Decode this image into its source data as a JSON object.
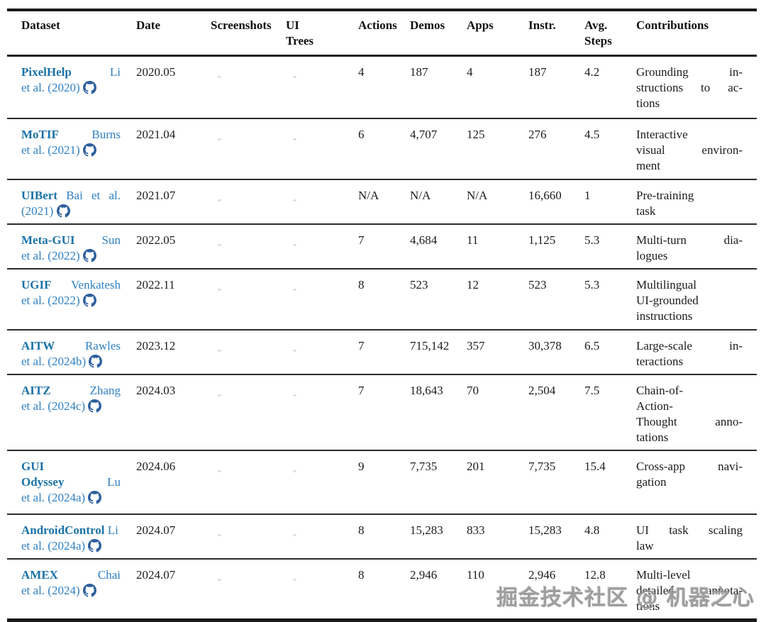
{
  "colors": {
    "dataset_name": "#1a72a8",
    "citation": "#2f80c3",
    "github_icon": "#2d5f9e",
    "watermark": "#969696"
  },
  "watermark_text": "掘金技术社区 @ 机器之心",
  "header": {
    "columns": [
      "Dataset",
      "Date",
      "Screenshots",
      "UI\nTrees",
      "Actions",
      "Demos",
      "Apps",
      "Instr.",
      "Avg.\nSteps",
      "Contributions"
    ]
  },
  "rows": [
    {
      "dataset": {
        "lines": [
          {
            "seg": [
              {
                "t": "PixelHelp",
                "s": "name"
              },
              {
                "t": "Li",
                "s": "cite"
              }
            ],
            "spread": true
          },
          {
            "seg": [
              {
                "t": "et al. (2020)",
                "s": "cite"
              }
            ],
            "icon": true
          }
        ]
      },
      "date": "2020.05",
      "actions": "4",
      "demos": "187",
      "apps": "4",
      "instr": "187",
      "avg_steps": "4.2",
      "contributions": [
        "Grounding in-",
        "structions to ac-",
        "tions"
      ]
    },
    {
      "dataset": {
        "lines": [
          {
            "seg": [
              {
                "t": "MoTIF",
                "s": "name"
              },
              {
                "t": "Burns",
                "s": "cite"
              }
            ],
            "spread": true
          },
          {
            "seg": [
              {
                "t": "et al. (2021)",
                "s": "cite"
              }
            ],
            "icon": true
          }
        ]
      },
      "date": "2021.04",
      "actions": "6",
      "demos": "4,707",
      "apps": "125",
      "instr": "276",
      "avg_steps": "4.5",
      "contributions": [
        "Interactive",
        "visual environ-",
        "ment"
      ]
    },
    {
      "dataset": {
        "lines": [
          {
            "seg": [
              {
                "t": "UIBert",
                "s": "name"
              },
              {
                "t": "Bai et al.",
                "s": "cite"
              }
            ],
            "spread": true
          },
          {
            "seg": [
              {
                "t": "(2021)",
                "s": "cite"
              }
            ],
            "icon": true
          }
        ]
      },
      "date": "2021.07",
      "actions": "N/A",
      "demos": "N/A",
      "apps": "N/A",
      "instr": "16,660",
      "avg_steps": "1",
      "contributions": [
        "Pre-training",
        "task"
      ]
    },
    {
      "dataset": {
        "lines": [
          {
            "seg": [
              {
                "t": "Meta-GUI",
                "s": "name"
              },
              {
                "t": "Sun",
                "s": "cite"
              }
            ],
            "spread": true
          },
          {
            "seg": [
              {
                "t": "et al. (2022)",
                "s": "cite"
              }
            ],
            "icon": true
          }
        ]
      },
      "date": "2022.05",
      "actions": "7",
      "demos": "4,684",
      "apps": "11",
      "instr": "1,125",
      "avg_steps": "5.3",
      "contributions": [
        "Multi-turn dia-",
        "logues"
      ]
    },
    {
      "dataset": {
        "lines": [
          {
            "seg": [
              {
                "t": "UGIF",
                "s": "name"
              },
              {
                "t": "Venkatesh",
                "s": "cite"
              }
            ],
            "spread": true
          },
          {
            "seg": [
              {
                "t": "et al. (2022)",
                "s": "cite"
              }
            ],
            "icon": true
          }
        ]
      },
      "date": "2022.11",
      "actions": "8",
      "demos": "523",
      "apps": "12",
      "instr": "523",
      "avg_steps": "5.3",
      "contributions": [
        "Multilingual",
        "UI-grounded",
        "instructions"
      ]
    },
    {
      "dataset": {
        "lines": [
          {
            "seg": [
              {
                "t": "AITW",
                "s": "name"
              },
              {
                "t": "Rawles",
                "s": "cite"
              }
            ],
            "spread": true
          },
          {
            "seg": [
              {
                "t": "et al. (2024b)",
                "s": "cite"
              }
            ],
            "icon": true
          }
        ]
      },
      "date": "2023.12",
      "actions": "7",
      "demos": "715,142",
      "apps": "357",
      "instr": "30,378",
      "avg_steps": "6.5",
      "contributions": [
        "Large-scale in-",
        "teractions"
      ]
    },
    {
      "dataset": {
        "lines": [
          {
            "seg": [
              {
                "t": "AITZ",
                "s": "name"
              },
              {
                "t": "Zhang",
                "s": "cite"
              }
            ],
            "spread": true
          },
          {
            "seg": [
              {
                "t": "et al. (2024c)",
                "s": "cite"
              }
            ],
            "icon": true
          }
        ]
      },
      "date": "2024.03",
      "actions": "7",
      "demos": "18,643",
      "apps": "70",
      "instr": "2,504",
      "avg_steps": "7.5",
      "contributions": [
        "Chain-of-",
        "Action-",
        "Thought anno-",
        "tations"
      ]
    },
    {
      "dataset": {
        "lines": [
          {
            "seg": [
              {
                "t": "GUI",
                "s": "name"
              }
            ]
          },
          {
            "seg": [
              {
                "t": "Odyssey",
                "s": "name"
              },
              {
                "t": "Lu",
                "s": "cite"
              }
            ],
            "spread": true
          },
          {
            "seg": [
              {
                "t": "et al. (2024a)",
                "s": "cite"
              }
            ],
            "icon": true
          }
        ]
      },
      "date": "2024.06",
      "actions": "9",
      "demos": "7,735",
      "apps": "201",
      "instr": "7,735",
      "avg_steps": "15.4",
      "contributions": [
        "Cross-app navi-",
        "gation"
      ]
    },
    {
      "dataset": {
        "lines": [
          {
            "seg": [
              {
                "t": "AndroidControl",
                "s": "name"
              },
              {
                "t": "Li",
                "s": "cite"
              }
            ],
            "nowrap": true
          },
          {
            "seg": [
              {
                "t": "et al. (2024a)",
                "s": "cite"
              }
            ],
            "icon": true
          }
        ]
      },
      "date": "2024.07",
      "actions": "8",
      "demos": "15,283",
      "apps": "833",
      "instr": "15,283",
      "avg_steps": "4.8",
      "contributions": [
        "UI task scaling",
        "law"
      ]
    },
    {
      "dataset": {
        "lines": [
          {
            "seg": [
              {
                "t": "AMEX",
                "s": "name"
              },
              {
                "t": "Chai",
                "s": "cite"
              }
            ],
            "spread": true
          },
          {
            "seg": [
              {
                "t": "et al. (2024)",
                "s": "cite"
              }
            ],
            "icon": true
          }
        ]
      },
      "date": "2024.07",
      "actions": "8",
      "demos": "2,946",
      "apps": "110",
      "instr": "2,946",
      "avg_steps": "12.8",
      "contributions": [
        "Multi-level",
        "detailed annota-",
        "tions"
      ]
    }
  ]
}
